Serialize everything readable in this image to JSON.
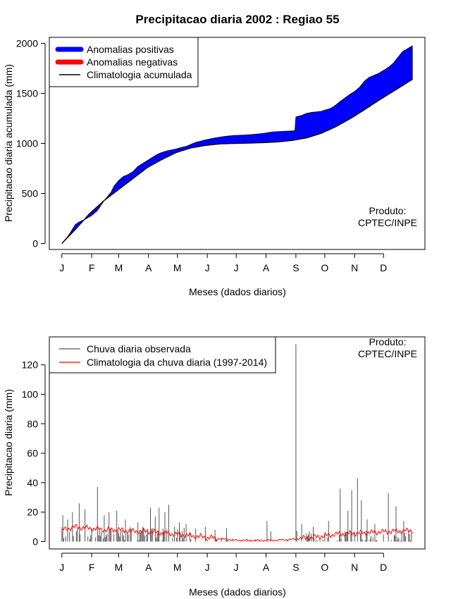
{
  "chart_data": [
    {
      "type": "area",
      "title": "Precipitacao diaria 2002 : Regiao 55",
      "ylabel": "Precipitacao diaria acumulada (mm)",
      "xlabel": "Meses (dados diarios)",
      "months": [
        "J",
        "F",
        "M",
        "A",
        "M",
        "J",
        "J",
        "A",
        "S",
        "O",
        "N",
        "D"
      ],
      "month_start_day": [
        1,
        32,
        60,
        91,
        121,
        152,
        182,
        213,
        244,
        274,
        305,
        335
      ],
      "yticks": [
        0,
        500,
        1000,
        1500,
        2000
      ],
      "ylim": [
        -60,
        2060
      ],
      "xlim": [
        -12,
        378
      ],
      "credit_line1": "Produto:",
      "credit_line2": "CPTEC/INPE",
      "legend": [
        {
          "label": "Anomalias positivas",
          "color": "#0000ff"
        },
        {
          "label": "Anomalias negativas",
          "color": "#ff0000"
        },
        {
          "label": "Climatologia acumulada",
          "color": "#000000"
        }
      ],
      "climatology_cumulative": {
        "days": [
          1,
          15,
          30,
          45,
          60,
          75,
          90,
          105,
          120,
          135,
          150,
          165,
          180,
          195,
          210,
          225,
          240,
          255,
          270,
          285,
          300,
          315,
          330,
          345,
          365
        ],
        "mm": [
          0,
          140,
          300,
          430,
          540,
          650,
          760,
          840,
          910,
          955,
          980,
          995,
          1000,
          1003,
          1008,
          1015,
          1030,
          1055,
          1100,
          1165,
          1245,
          1335,
          1430,
          1520,
          1640
        ]
      },
      "observed_cumulative": {
        "days": [
          1,
          8,
          15,
          20,
          25,
          32,
          38,
          45,
          52,
          55,
          60,
          65,
          70,
          75,
          80,
          85,
          90,
          95,
          100,
          105,
          110,
          120,
          125,
          130,
          140,
          150,
          160,
          170,
          180,
          190,
          200,
          210,
          220,
          230,
          240,
          243,
          244,
          250,
          255,
          260,
          270,
          280,
          285,
          290,
          300,
          305,
          310,
          315,
          320,
          330,
          340,
          345,
          350,
          355,
          365
        ],
        "mm": [
          0,
          80,
          190,
          220,
          240,
          280,
          330,
          430,
          510,
          570,
          630,
          670,
          690,
          720,
          770,
          800,
          830,
          860,
          890,
          910,
          925,
          945,
          960,
          970,
          1010,
          1035,
          1055,
          1070,
          1080,
          1083,
          1090,
          1100,
          1115,
          1120,
          1125,
          1128,
          1265,
          1280,
          1300,
          1310,
          1320,
          1350,
          1380,
          1420,
          1490,
          1520,
          1560,
          1620,
          1660,
          1700,
          1760,
          1800,
          1860,
          1920,
          1975
        ]
      }
    },
    {
      "type": "bar",
      "ylabel": "Precipitacao diaria (mm)",
      "xlabel": "Meses (dados diarios)",
      "months": [
        "J",
        "F",
        "M",
        "A",
        "M",
        "J",
        "J",
        "A",
        "S",
        "O",
        "N",
        "D"
      ],
      "month_start_day": [
        1,
        32,
        60,
        91,
        121,
        152,
        182,
        213,
        244,
        274,
        305,
        335
      ],
      "yticks": [
        0,
        20,
        40,
        60,
        80,
        100,
        120
      ],
      "ylim": [
        -5,
        139
      ],
      "xlim": [
        -12,
        378
      ],
      "credit_line1": "Produto:",
      "credit_line2": "CPTEC/INPE",
      "legend": [
        {
          "label": "Chuva diaria observada",
          "color": "#555555"
        },
        {
          "label": "Climatologia da chuva diaria (1997-2014)",
          "color": "#ff0000"
        }
      ],
      "notable_observed_peaks": {
        "days": [
          2,
          7,
          12,
          19,
          25,
          38,
          45,
          50,
          58,
          67,
          72,
          80,
          85,
          93,
          98,
          102,
          108,
          112,
          118,
          123,
          130,
          140,
          150,
          160,
          172,
          214,
          218,
          244,
          250,
          262,
          278,
          290,
          298,
          302,
          308,
          312,
          318,
          326,
          340,
          348,
          356
        ],
        "mm": [
          18,
          15,
          20,
          26,
          22,
          37,
          18,
          20,
          21,
          15,
          10,
          13,
          10,
          23,
          17,
          23,
          20,
          25,
          10,
          13,
          12,
          9,
          10,
          8,
          9,
          14,
          7,
          134,
          12,
          10,
          14,
          36,
          21,
          35,
          43,
          28,
          15,
          12,
          33,
          24,
          14
        ]
      },
      "climatology_daily": {
        "days": [
          1,
          15,
          30,
          45,
          60,
          75,
          90,
          105,
          120,
          135,
          150,
          165,
          180,
          195,
          210,
          225,
          240,
          255,
          270,
          285,
          300,
          315,
          330,
          345,
          365
        ],
        "mm": [
          8,
          10,
          9,
          8,
          8,
          7,
          7,
          6,
          5,
          4,
          3,
          2,
          1,
          0.8,
          0.8,
          1,
          1.5,
          2.5,
          3.5,
          5,
          5.5,
          6,
          6.5,
          7,
          7.5
        ]
      }
    }
  ]
}
